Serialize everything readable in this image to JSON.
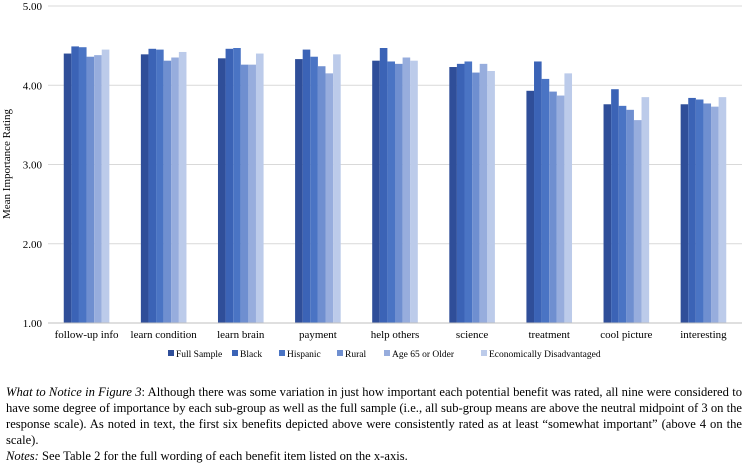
{
  "chart_data": {
    "type": "bar",
    "ylabel": "Mean Importance Rating",
    "xlabel": "",
    "ylim": [
      1.0,
      5.0
    ],
    "yticks": [
      "1.00",
      "2.00",
      "3.00",
      "4.00",
      "5.00"
    ],
    "grid": true,
    "legend_position": "bottom",
    "categories": [
      "follow-up info",
      "learn condition",
      "learn brain",
      "payment",
      "help others",
      "science",
      "treatment",
      "cool picture",
      "interesting"
    ],
    "series": [
      {
        "name": "Full Sample",
        "color": "#2f4e99",
        "values": [
          4.4,
          4.39,
          4.34,
          4.33,
          4.31,
          4.23,
          3.93,
          3.76,
          3.76
        ]
      },
      {
        "name": "Black",
        "color": "#3b63b6",
        "values": [
          4.49,
          4.46,
          4.46,
          4.45,
          4.47,
          4.27,
          4.3,
          3.95,
          3.84
        ]
      },
      {
        "name": "Hispanic",
        "color": "#4a74c4",
        "values": [
          4.48,
          4.45,
          4.47,
          4.36,
          4.3,
          4.3,
          4.08,
          3.74,
          3.82
        ]
      },
      {
        "name": "Rural",
        "color": "#6f8fd0",
        "values": [
          4.36,
          4.31,
          4.26,
          4.24,
          4.27,
          4.16,
          3.92,
          3.69,
          3.77
        ]
      },
      {
        "name": "Age 65 or Older",
        "color": "#97addd",
        "values": [
          4.38,
          4.35,
          4.26,
          4.15,
          4.35,
          4.27,
          3.87,
          3.56,
          3.73
        ]
      },
      {
        "name": "Economically Disadvantaged",
        "color": "#bccbea",
        "values": [
          4.45,
          4.42,
          4.4,
          4.39,
          4.31,
          4.18,
          4.15,
          3.85,
          3.85
        ]
      }
    ]
  },
  "caption": {
    "notice_lead": "What to Notice in Figure 3",
    "notice_body": ": Although there was some variation in just how important each potential benefit was rated, all nine were considered to have some degree of importance by each sub-group as well as the full sample (i.e., all sub-group means are above the neutral midpoint of 3 on the response scale). As noted in text, the first six benefits depicted above were consistently rated as at least “somewhat important” (above 4 on the scale).",
    "notes_lead": "Notes:",
    "notes_body": " See Table 2 for the full wording of each benefit item listed on the x-axis."
  }
}
